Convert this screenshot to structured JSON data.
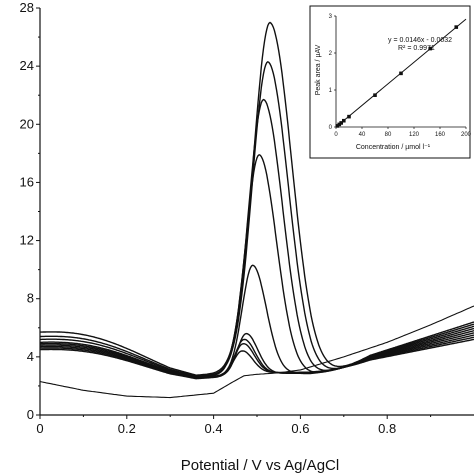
{
  "chart_data": [
    {
      "type": "line",
      "title": "",
      "xlabel": "Potential / V vs Ag/AgCl",
      "ylabel": "",
      "xlim": [
        0,
        1.0
      ],
      "ylim": [
        0,
        28
      ],
      "x_ticks": [
        "0",
        "0.2",
        "0.4",
        "0.6",
        "0.8"
      ],
      "y_ticks": [
        "0",
        "4",
        "8",
        "12",
        "16",
        "20",
        "24",
        "28"
      ],
      "grid": false,
      "legend": "none",
      "baseline": {
        "x": [
          0,
          0.1,
          0.2,
          0.3,
          0.4,
          0.44,
          0.47,
          0.5,
          0.55,
          0.6,
          0.7,
          0.8,
          0.9,
          1.0
        ],
        "y": [
          2.3,
          1.7,
          1.3,
          1.2,
          1.5,
          2.2,
          2.7,
          2.8,
          2.9,
          3.1,
          4.0,
          5.0,
          6.2,
          7.5
        ]
      },
      "series": [
        {
          "peak_x": 0.53,
          "peak_y": 27.0,
          "left_y": 5.7
        },
        {
          "peak_x": 0.525,
          "peak_y": 24.3,
          "left_y": 5.4
        },
        {
          "peak_x": 0.515,
          "peak_y": 21.7,
          "left_y": 5.2
        },
        {
          "peak_x": 0.505,
          "peak_y": 17.9,
          "left_y": 5.0
        },
        {
          "peak_x": 0.49,
          "peak_y": 10.3,
          "left_y": 4.9
        },
        {
          "peak_x": 0.475,
          "peak_y": 5.6,
          "left_y": 4.8
        },
        {
          "peak_x": 0.47,
          "peak_y": 5.2,
          "left_y": 4.7
        },
        {
          "peak_x": 0.468,
          "peak_y": 4.9,
          "left_y": 4.6
        },
        {
          "peak_x": 0.465,
          "peak_y": 4.4,
          "left_y": 4.5
        }
      ]
    },
    {
      "type": "scatter",
      "title": "",
      "xlabel": "Concentration / µmol l⁻¹",
      "ylabel": "Peak area / µAV",
      "xlim": [
        0,
        200
      ],
      "ylim": [
        0,
        3
      ],
      "x_ticks": [
        "0",
        "40",
        "80",
        "120",
        "160",
        "200"
      ],
      "y_ticks": [
        "0",
        "1",
        "2",
        "3"
      ],
      "annotations": [
        "y = 0.0146x - 0.0032",
        "R² = 0.9971"
      ],
      "fit": {
        "slope": 0.0146,
        "intercept": -0.0032
      },
      "points": [
        {
          "x": 2,
          "y": 0.03
        },
        {
          "x": 5,
          "y": 0.07
        },
        {
          "x": 8,
          "y": 0.11
        },
        {
          "x": 12,
          "y": 0.17
        },
        {
          "x": 20,
          "y": 0.28
        },
        {
          "x": 60,
          "y": 0.86
        },
        {
          "x": 100,
          "y": 1.45
        },
        {
          "x": 145,
          "y": 2.12
        },
        {
          "x": 185,
          "y": 2.7
        }
      ]
    }
  ]
}
